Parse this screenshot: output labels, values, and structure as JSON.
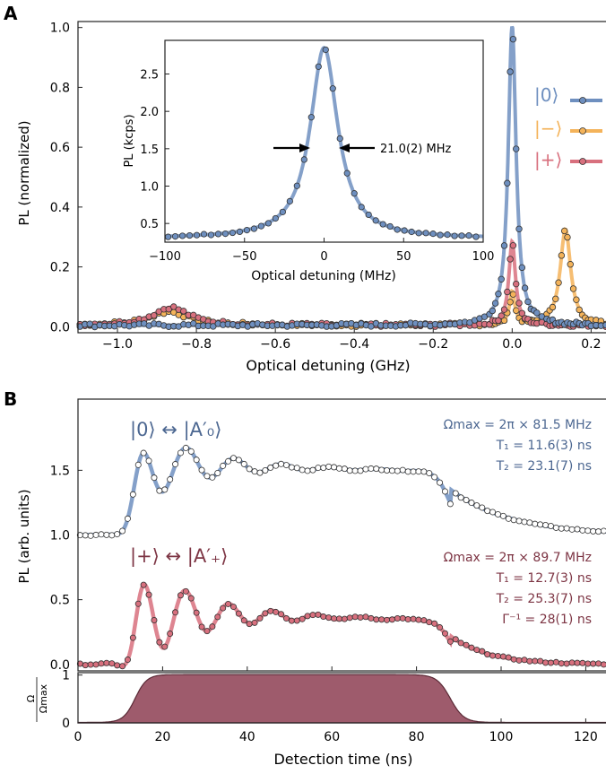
{
  "colors": {
    "blue": "#6e8fbf",
    "orange": "#f4b35a",
    "red": "#d8707e",
    "maroon": "#9e5b6c",
    "blue_text": "#4c6791",
    "maroon_text": "#7d3544"
  },
  "chart_data": [
    {
      "id": "A",
      "panel_label": "A",
      "type": "line",
      "xlabel": "Optical detuning (GHz)",
      "ylabel": "PL (normalized)",
      "xlim": [
        -1.1,
        0.24
      ],
      "ylim": [
        -0.02,
        1.02
      ],
      "xticks": [
        -1.0,
        -0.8,
        -0.6,
        -0.4,
        -0.2,
        0.0,
        0.2
      ],
      "xtick_labels": [
        "−1.0",
        "−0.8",
        "−0.6",
        "−0.4",
        "−0.2",
        "0.0",
        "0.2"
      ],
      "yticks": [
        0,
        0.2,
        0.4,
        0.6,
        0.8,
        1.0
      ],
      "ytick_labels": [
        "0.0",
        "0.2",
        "0.4",
        "0.6",
        "0.8",
        "1.0"
      ],
      "legend": {
        "placement": "right",
        "entries": [
          "|0⟩",
          "|−⟩",
          "|+⟩"
        ]
      },
      "series": [
        {
          "name": "|0⟩",
          "color": "blue",
          "peaks": [
            {
              "x0": 0.0,
              "amp": 1.0,
              "w": 0.012
            }
          ],
          "baseline": 0.005
        },
        {
          "name": "|−⟩",
          "color": "orange",
          "peaks": [
            {
              "x0": 0.135,
              "amp": 0.32,
              "w": 0.016
            },
            {
              "x0": 0.0,
              "amp": 0.11,
              "w": 0.008
            },
            {
              "x0": -0.87,
              "amp": 0.045,
              "w": 0.06
            }
          ],
          "baseline": 0.005
        },
        {
          "name": "|+⟩",
          "color": "red",
          "peaks": [
            {
              "x0": 0.0,
              "amp": 0.28,
              "w": 0.01
            },
            {
              "x0": -0.865,
              "amp": 0.06,
              "w": 0.055
            }
          ],
          "baseline": 0.005
        }
      ],
      "inset": {
        "xlabel": "Optical detuning (MHz)",
        "ylabel": "PL (kcps)",
        "xlim": [
          -100,
          100
        ],
        "ylim": [
          0.25,
          2.95
        ],
        "xticks": [
          -100,
          -50,
          0,
          50,
          100
        ],
        "xtick_labels": [
          "−100",
          "−50",
          "0",
          "50",
          "100"
        ],
        "yticks": [
          0.5,
          1.0,
          1.5,
          2.0,
          2.5
        ],
        "ytick_labels": [
          "0.5",
          "1.0",
          "1.5",
          "2.0",
          "2.5"
        ],
        "annotation": "21.0(2) MHz",
        "fwhm": 21.0,
        "peak": 2.85,
        "baseline": 0.3
      }
    },
    {
      "id": "B",
      "panel_label": "B",
      "type": "line",
      "ylabel": "PL (arb. units)",
      "xlim": [
        0,
        125
      ],
      "ylim": [
        -0.05,
        2.05
      ],
      "yticks": [
        0.0,
        0.5,
        1.0,
        1.5
      ],
      "ytick_labels": [
        "0.0",
        "0.5",
        "1.0",
        "1.5"
      ],
      "traces": [
        {
          "label": "|0⟩ ↔ |A′₀⟩",
          "color": "blue",
          "offset": 1.0,
          "omega_max": "Ωmax = 2π × 81.5 MHz",
          "T1": "T₁ = 11.6(3) ns",
          "T2": "T₂ = 23.1(7) ns",
          "gamma": "",
          "steady": 0.55,
          "osc_amp": 0.42,
          "period": 11.3,
          "tail": 0.05
        },
        {
          "label": "|+⟩ ↔ |A′₊⟩",
          "color": "red",
          "offset": 0.0,
          "omega_max": "Ωmax = 2π × 89.7 MHz",
          "T1": "T₁ = 12.7(3) ns",
          "T2": "T₂ = 25.3(7) ns",
          "gamma": "Γ⁻¹ = 28(1) ns",
          "steady": 0.4,
          "osc_amp": 0.55,
          "period": 10.3,
          "tail": 0.0
        }
      ]
    },
    {
      "id": "B-drive",
      "type": "area",
      "xlabel": "Detection time (ns)",
      "ylabel": "Ω / Ωmax",
      "ylabel_num": "Ω",
      "ylabel_den": "Ωmax",
      "xlim": [
        0,
        125
      ],
      "ylim": [
        0,
        1.05
      ],
      "xticks": [
        0,
        20,
        40,
        60,
        80,
        100,
        120
      ],
      "xtick_labels": [
        "0",
        "20",
        "40",
        "60",
        "80",
        "100",
        "120"
      ],
      "yticks": [
        0,
        1
      ],
      "ytick_labels": [
        "0",
        "1"
      ],
      "rise": [
        10,
        18
      ],
      "fall": [
        84,
        92
      ],
      "level": 1.0,
      "color": "maroon"
    }
  ]
}
